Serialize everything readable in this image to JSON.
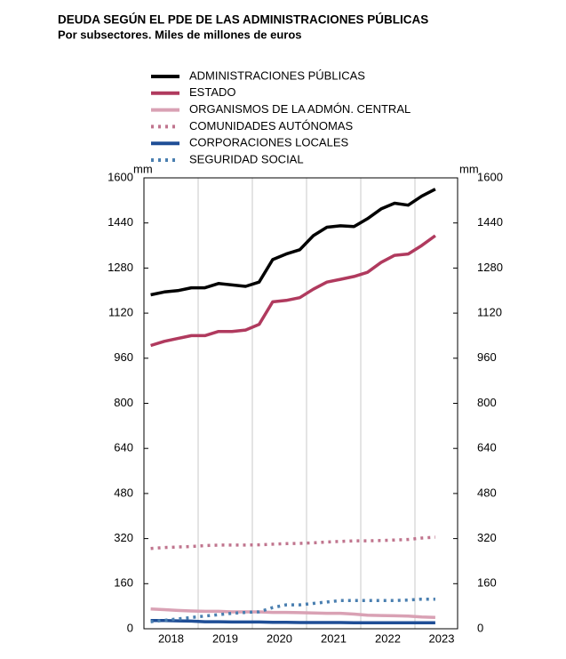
{
  "chart_data": {
    "type": "line",
    "title": "DEUDA SEGÚN EL PDE DE LAS ADMINISTRACIONES PÚBLICAS",
    "subtitle": "Por subsectores. Miles de millones de euros",
    "y_unit": "mm",
    "categories": [
      null,
      null,
      "2018",
      null,
      null,
      null,
      "2019",
      null,
      null,
      null,
      "2020",
      null,
      null,
      null,
      "2021",
      null,
      null,
      null,
      "2022",
      null,
      null,
      null
    ],
    "series": [
      {
        "name": "ADMINISTRACIONES PÚBLICAS",
        "color": "#000000",
        "dash": "solid",
        "values": [
          1185,
          1195,
          1200,
          1210,
          1210,
          1225,
          1220,
          1215,
          1230,
          1310,
          1330,
          1345,
          1395,
          1425,
          1430,
          1427,
          1455,
          1490,
          1510,
          1503,
          1535,
          1560
        ]
      },
      {
        "name": "ESTADO",
        "color": "#b03a5e",
        "dash": "solid",
        "values": [
          1005,
          1020,
          1030,
          1040,
          1040,
          1055,
          1055,
          1060,
          1080,
          1160,
          1165,
          1175,
          1205,
          1230,
          1240,
          1250,
          1265,
          1300,
          1325,
          1330,
          1360,
          1395
        ]
      },
      {
        "name": "ORGANISMOS DE LA ADMÓN. CENTRAL",
        "color": "#d9a1b4",
        "dash": "solid",
        "values": [
          70,
          68,
          65,
          63,
          62,
          62,
          60,
          60,
          60,
          58,
          58,
          57,
          56,
          55,
          55,
          52,
          48,
          47,
          46,
          45,
          42,
          40
        ]
      },
      {
        "name": "COMUNIDADES AUTÓNOMAS",
        "color": "#c0758e",
        "dash": "dotted",
        "values": [
          285,
          288,
          290,
          292,
          295,
          297,
          297,
          297,
          298,
          300,
          302,
          303,
          305,
          308,
          310,
          312,
          312,
          313,
          315,
          317,
          322,
          325
        ]
      },
      {
        "name": "CORPORACIONES LOCALES",
        "color": "#1f4e96",
        "dash": "solid",
        "values": [
          29,
          29,
          28,
          27,
          25,
          25,
          24,
          24,
          24,
          23,
          23,
          22,
          22,
          22,
          22,
          21,
          21,
          21,
          21,
          21,
          21,
          21
        ]
      },
      {
        "name": "SEGURIDAD SOCIAL",
        "color": "#4a7fb0",
        "dash": "dotted",
        "values": [
          25,
          30,
          35,
          40,
          45,
          50,
          55,
          58,
          60,
          75,
          85,
          85,
          90,
          95,
          100,
          100,
          100,
          100,
          100,
          102,
          105,
          105
        ]
      }
    ],
    "last_year_label": "2023",
    "ylim": [
      0,
      1600
    ],
    "yticks": [
      0,
      160,
      320,
      480,
      640,
      800,
      960,
      1120,
      1280,
      1440,
      1600
    ],
    "grid": "x"
  }
}
